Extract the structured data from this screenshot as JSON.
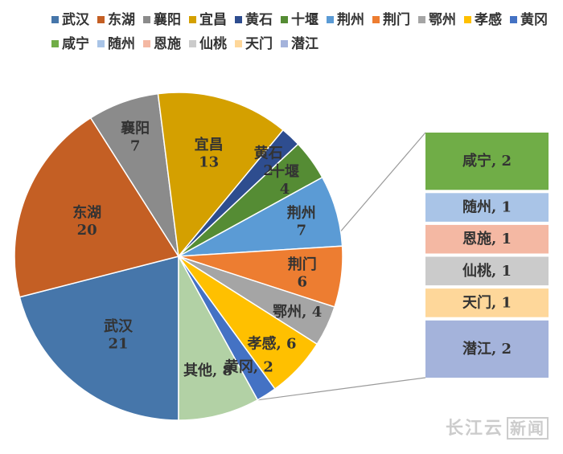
{
  "chart_data": {
    "type": "pie",
    "subtype": "bar-of-pie",
    "legend_position": "top",
    "slices": [
      {
        "label": "武汉",
        "value": 21,
        "color": "#4676aa"
      },
      {
        "label": "东湖",
        "value": 20,
        "color": "#c45f24"
      },
      {
        "label": "襄阳",
        "value": 7,
        "color": "#8b8b8b"
      },
      {
        "label": "宜昌",
        "value": 13,
        "color": "#d4a000"
      },
      {
        "label": "黄石",
        "value": 2,
        "color": "#2e4d8f"
      },
      {
        "label": "十堰",
        "value": 4,
        "color": "#558c34"
      },
      {
        "label": "荆州",
        "value": 7,
        "color": "#5b9bd5"
      },
      {
        "label": "荆门",
        "value": 6,
        "color": "#ed7d31"
      },
      {
        "label": "鄂州",
        "value": 4,
        "color": "#a5a5a5"
      },
      {
        "label": "孝感",
        "value": 6,
        "color": "#ffc000"
      },
      {
        "label": "黄冈",
        "value": 2,
        "color": "#4472c4"
      }
    ],
    "other": {
      "label": "其他",
      "value": 8,
      "color": "#b2d1a5"
    },
    "other_breakdown": [
      {
        "label": "咸宁",
        "value": 2,
        "color": "#70ad47"
      },
      {
        "label": "随州",
        "value": 1,
        "color": "#a9c4e7"
      },
      {
        "label": "恩施",
        "value": 1,
        "color": "#f4b8a3"
      },
      {
        "label": "仙桃",
        "value": 1,
        "color": "#cbcbcb"
      },
      {
        "label": "天门",
        "value": 1,
        "color": "#fed79a"
      },
      {
        "label": "潜江",
        "value": 2,
        "color": "#a4b3db"
      }
    ],
    "legend": [
      "武汉",
      "东湖",
      "襄阳",
      "宜昌",
      "黄石",
      "十堰",
      "荆州",
      "荆门",
      "鄂州",
      "孝感",
      "黄冈",
      "咸宁",
      "随州",
      "恩施",
      "仙桃",
      "天门",
      "潜江"
    ]
  },
  "watermark": {
    "text": "长江云",
    "boxed": "新闻"
  }
}
